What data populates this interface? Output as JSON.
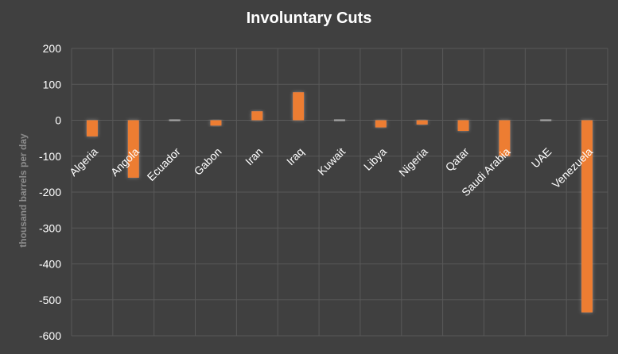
{
  "chart_data": {
    "type": "bar",
    "title": "Involuntary Cuts",
    "ylabel": "thousand barrels per day",
    "xlabel": "",
    "categories": [
      "Algeria",
      "Angola",
      "Ecuador",
      "Gabon",
      "Iran",
      "Iraq",
      "Kuwait",
      "Libya",
      "Nigeria",
      "Qatar",
      "Saudi Arabia",
      "UAE",
      "Venezuela"
    ],
    "values": [
      -45,
      -160,
      -3,
      -15,
      25,
      78,
      -3,
      -20,
      -12,
      -30,
      -100,
      -3,
      -535
    ],
    "ylim": [
      -600,
      200
    ],
    "yticks": [
      200,
      100,
      0,
      -100,
      -200,
      -300,
      -400,
      -500,
      -600
    ],
    "grid": true,
    "colors": {
      "bar": "#ED7D31",
      "minor_bar": "#A5A5A5",
      "background": "#404040",
      "grid": "#595959",
      "text": "#ffffff"
    }
  }
}
